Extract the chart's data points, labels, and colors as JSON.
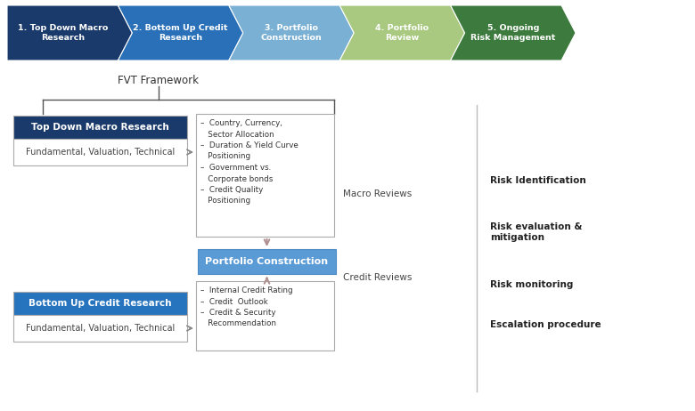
{
  "fig_width": 7.8,
  "fig_height": 4.62,
  "bg_color": "#ffffff",
  "arrow_steps": [
    {
      "label": "1. Top Down Macro\nResearch",
      "color": "#1a3a6b",
      "text_color": "#ffffff"
    },
    {
      "label": "2. Bottom Up Credit\nResearch",
      "color": "#2970b8",
      "text_color": "#ffffff"
    },
    {
      "label": "3. Portfolio\nConstruction",
      "color": "#7ab0d4",
      "text_color": "#ffffff"
    },
    {
      "label": "4. Portfolio\nReview",
      "color": "#a8c97f",
      "text_color": "#ffffff"
    },
    {
      "label": "5. Ongoing\nRisk Management",
      "color": "#3d7a3d",
      "text_color": "#ffffff"
    }
  ],
  "fvt_label": "FVT Framework",
  "top_box_title": "Top Down Macro Research",
  "top_box_sub": "Fundamental, Valuation, Technical",
  "top_box_color": "#1a3a6b",
  "bottom_box_title": "Bottom Up Credit Research",
  "bottom_box_sub": "Fundamental, Valuation, Technical",
  "bottom_box_color": "#2673be",
  "middle_box_label": "Portfolio Construction",
  "middle_box_color": "#5b9bd5",
  "top_bullets": "–  Country, Currency,\n   Sector Allocation\n–  Duration & Yield Curve\n   Positioning\n–  Government vs.\n   Corporate bonds\n–  Credit Quality\n   Positioning",
  "bottom_bullets": "–  Internal Credit Rating\n–  Credit  Outlook\n–  Credit & Security\n   Recommendation",
  "macro_reviews_label": "Macro Reviews",
  "credit_reviews_label": "Credit Reviews",
  "right_items": [
    "Risk Identification",
    "Risk evaluation &\nmitigation",
    "Risk monitoring",
    "Escalation procedure"
  ]
}
